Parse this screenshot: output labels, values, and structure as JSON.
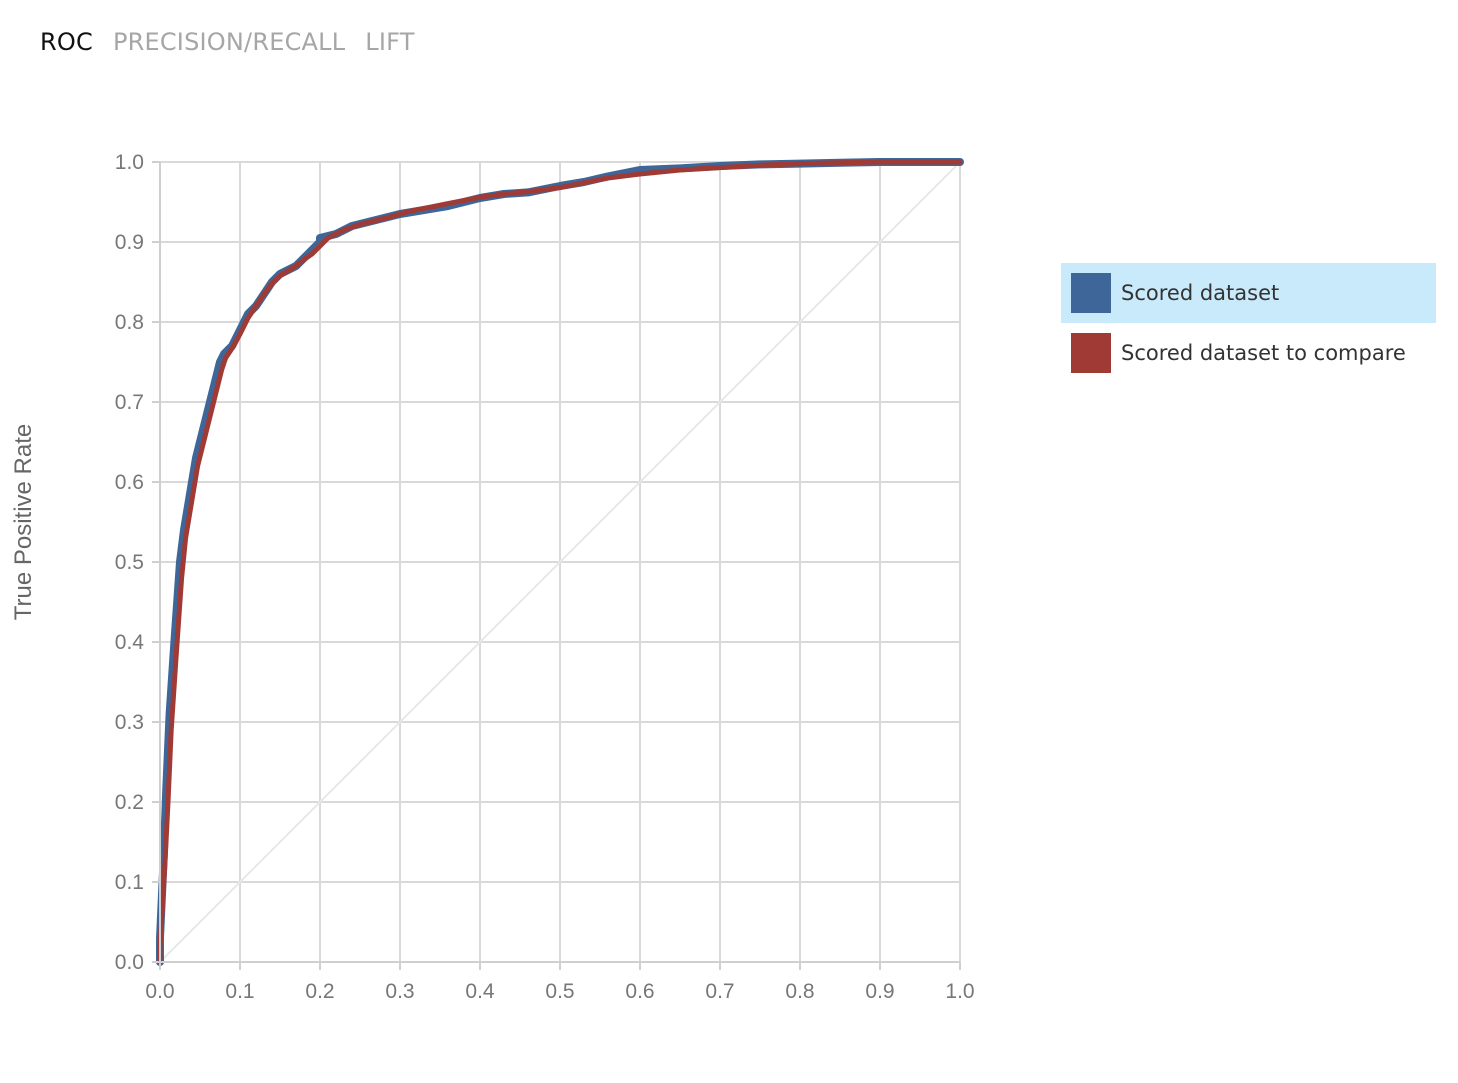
{
  "tabs": [
    {
      "label": "ROC",
      "active": true
    },
    {
      "label": "PRECISION/RECALL",
      "active": false
    },
    {
      "label": "LIFT",
      "active": false
    }
  ],
  "colors": {
    "series_blue": "#3e6699",
    "series_red": "#a03a34",
    "legend_selected_bg": "#c8eafb",
    "grid": "#d9d9d9",
    "diagonal": "#e8e8e8",
    "tick_text": "#777777"
  },
  "legend": {
    "items": [
      {
        "label": "Scored dataset",
        "color": "#3e6699",
        "selected": true
      },
      {
        "label": "Scored dataset to compare",
        "color": "#a03a34",
        "selected": false
      }
    ]
  },
  "chart_data": {
    "type": "line",
    "title": "",
    "xlabel": "",
    "ylabel": "True Positive Rate",
    "xlim": [
      0,
      1
    ],
    "ylim": [
      0,
      1
    ],
    "xticks": [
      "0.0",
      "0.1",
      "0.2",
      "0.3",
      "0.4",
      "0.5",
      "0.6",
      "0.7",
      "0.8",
      "0.9",
      "1.0"
    ],
    "yticks": [
      "0.0",
      "0.1",
      "0.2",
      "0.3",
      "0.4",
      "0.5",
      "0.6",
      "0.7",
      "0.8",
      "0.9",
      "1.0"
    ],
    "grid": true,
    "legend_position": "right",
    "diagonal_reference": true,
    "series": [
      {
        "name": "Scored dataset",
        "color": "#3e6699",
        "x": [
          0.0,
          0.0,
          0.005,
          0.008,
          0.012,
          0.018,
          0.025,
          0.03,
          0.035,
          0.04,
          0.045,
          0.05,
          0.055,
          0.06,
          0.065,
          0.07,
          0.075,
          0.08,
          0.09,
          0.1,
          0.11,
          0.12,
          0.13,
          0.14,
          0.15,
          0.16,
          0.17,
          0.18,
          0.19,
          0.2,
          0.2,
          0.22,
          0.24,
          0.26,
          0.28,
          0.3,
          0.33,
          0.36,
          0.38,
          0.4,
          0.43,
          0.46,
          0.5,
          0.53,
          0.56,
          0.6,
          0.65,
          0.7,
          0.75,
          0.8,
          0.85,
          0.9,
          0.95,
          1.0
        ],
        "y": [
          0.0,
          0.03,
          0.14,
          0.22,
          0.31,
          0.4,
          0.5,
          0.54,
          0.57,
          0.6,
          0.63,
          0.65,
          0.67,
          0.69,
          0.71,
          0.73,
          0.75,
          0.76,
          0.77,
          0.79,
          0.81,
          0.82,
          0.835,
          0.85,
          0.86,
          0.865,
          0.87,
          0.88,
          0.89,
          0.9,
          0.905,
          0.91,
          0.92,
          0.925,
          0.93,
          0.935,
          0.94,
          0.945,
          0.95,
          0.955,
          0.96,
          0.962,
          0.97,
          0.975,
          0.982,
          0.99,
          0.992,
          0.995,
          0.997,
          0.998,
          0.999,
          1.0,
          1.0,
          1.0
        ]
      },
      {
        "name": "Scored dataset to compare",
        "color": "#a03a34",
        "x": [
          0.0,
          0.0,
          0.006,
          0.01,
          0.014,
          0.02,
          0.027,
          0.032,
          0.037,
          0.042,
          0.047,
          0.052,
          0.057,
          0.062,
          0.067,
          0.072,
          0.077,
          0.082,
          0.092,
          0.1,
          0.11,
          0.12,
          0.13,
          0.14,
          0.15,
          0.16,
          0.17,
          0.18,
          0.19,
          0.2,
          0.21,
          0.23,
          0.25,
          0.27,
          0.29,
          0.31,
          0.34,
          0.36,
          0.38,
          0.4,
          0.43,
          0.46,
          0.5,
          0.53,
          0.56,
          0.6,
          0.65,
          0.7,
          0.75,
          0.8,
          0.85,
          0.9,
          0.95,
          1.0
        ],
        "y": [
          0.0,
          0.02,
          0.12,
          0.2,
          0.29,
          0.38,
          0.48,
          0.53,
          0.56,
          0.59,
          0.62,
          0.64,
          0.66,
          0.68,
          0.7,
          0.72,
          0.74,
          0.755,
          0.77,
          0.785,
          0.805,
          0.82,
          0.835,
          0.848,
          0.858,
          0.864,
          0.87,
          0.878,
          0.885,
          0.895,
          0.905,
          0.915,
          0.922,
          0.927,
          0.932,
          0.938,
          0.944,
          0.948,
          0.952,
          0.956,
          0.96,
          0.963,
          0.968,
          0.974,
          0.98,
          0.985,
          0.99,
          0.993,
          0.996,
          0.998,
          0.999,
          1.0,
          1.0,
          1.0
        ]
      }
    ]
  }
}
